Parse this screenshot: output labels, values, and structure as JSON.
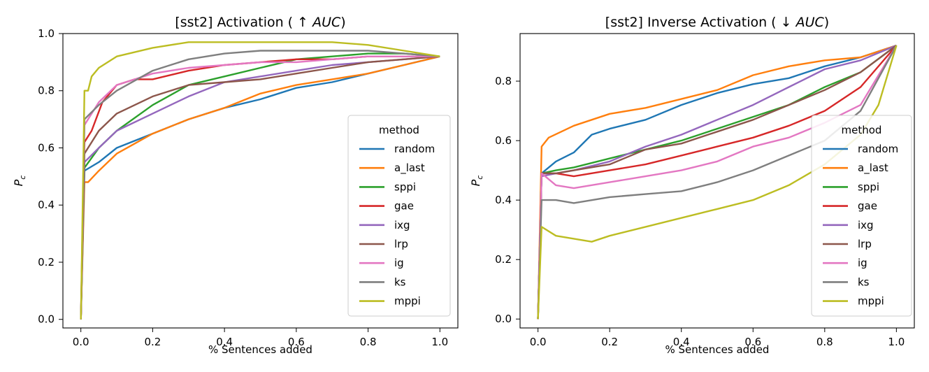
{
  "chart_data": [
    {
      "type": "line",
      "title_prefix": "[sst2] Activation ( ↑ ",
      "title_italic": "AUC",
      "title_suffix": ")",
      "xlabel": "% Sentences added",
      "ylabel_main": "P",
      "ylabel_sub": "c",
      "xlim": [
        -0.05,
        1.05
      ],
      "ylim": [
        -0.03,
        1.0
      ],
      "xticks": [
        "0.0",
        "0.2",
        "0.4",
        "0.6",
        "0.8",
        "1.0"
      ],
      "yticks": [
        "0.0",
        "0.2",
        "0.4",
        "0.6",
        "0.8",
        "1.0"
      ],
      "legend": {
        "title": "method",
        "position": "lower-right"
      },
      "series": [
        {
          "name": "random",
          "color": "#1f77b4",
          "points": [
            [
              0,
              0
            ],
            [
              0.01,
              0.52
            ],
            [
              0.05,
              0.55
            ],
            [
              0.1,
              0.6
            ],
            [
              0.2,
              0.65
            ],
            [
              0.3,
              0.7
            ],
            [
              0.4,
              0.74
            ],
            [
              0.5,
              0.77
            ],
            [
              0.6,
              0.81
            ],
            [
              0.7,
              0.83
            ],
            [
              0.8,
              0.86
            ],
            [
              0.9,
              0.89
            ],
            [
              1.0,
              0.92
            ]
          ]
        },
        {
          "name": "a_last",
          "color": "#ff7f0e",
          "points": [
            [
              0,
              0
            ],
            [
              0.01,
              0.48
            ],
            [
              0.02,
              0.48
            ],
            [
              0.05,
              0.52
            ],
            [
              0.1,
              0.58
            ],
            [
              0.2,
              0.65
            ],
            [
              0.3,
              0.7
            ],
            [
              0.4,
              0.74
            ],
            [
              0.5,
              0.79
            ],
            [
              0.6,
              0.82
            ],
            [
              0.7,
              0.84
            ],
            [
              0.8,
              0.86
            ],
            [
              0.9,
              0.89
            ],
            [
              1.0,
              0.92
            ]
          ]
        },
        {
          "name": "sppi",
          "color": "#2ca02c",
          "points": [
            [
              0,
              0
            ],
            [
              0.01,
              0.53
            ],
            [
              0.05,
              0.6
            ],
            [
              0.1,
              0.66
            ],
            [
              0.2,
              0.75
            ],
            [
              0.3,
              0.82
            ],
            [
              0.4,
              0.85
            ],
            [
              0.5,
              0.88
            ],
            [
              0.6,
              0.91
            ],
            [
              0.7,
              0.92
            ],
            [
              0.8,
              0.93
            ],
            [
              0.9,
              0.93
            ],
            [
              1.0,
              0.92
            ]
          ]
        },
        {
          "name": "gae",
          "color": "#d62728",
          "points": [
            [
              0,
              0
            ],
            [
              0.01,
              0.62
            ],
            [
              0.03,
              0.66
            ],
            [
              0.06,
              0.76
            ],
            [
              0.1,
              0.82
            ],
            [
              0.15,
              0.84
            ],
            [
              0.2,
              0.84
            ],
            [
              0.3,
              0.87
            ],
            [
              0.4,
              0.89
            ],
            [
              0.5,
              0.9
            ],
            [
              0.6,
              0.91
            ],
            [
              0.7,
              0.91
            ],
            [
              0.8,
              0.92
            ],
            [
              0.9,
              0.92
            ],
            [
              1.0,
              0.92
            ]
          ]
        },
        {
          "name": "ixg",
          "color": "#9467bd",
          "points": [
            [
              0,
              0
            ],
            [
              0.01,
              0.55
            ],
            [
              0.05,
              0.6
            ],
            [
              0.1,
              0.66
            ],
            [
              0.2,
              0.72
            ],
            [
              0.3,
              0.78
            ],
            [
              0.4,
              0.83
            ],
            [
              0.5,
              0.85
            ],
            [
              0.6,
              0.87
            ],
            [
              0.7,
              0.89
            ],
            [
              0.8,
              0.9
            ],
            [
              0.9,
              0.91
            ],
            [
              1.0,
              0.92
            ]
          ]
        },
        {
          "name": "lrp",
          "color": "#8c564b",
          "points": [
            [
              0,
              0
            ],
            [
              0.01,
              0.58
            ],
            [
              0.05,
              0.66
            ],
            [
              0.1,
              0.72
            ],
            [
              0.2,
              0.78
            ],
            [
              0.3,
              0.82
            ],
            [
              0.4,
              0.83
            ],
            [
              0.5,
              0.84
            ],
            [
              0.6,
              0.86
            ],
            [
              0.7,
              0.88
            ],
            [
              0.8,
              0.9
            ],
            [
              0.9,
              0.91
            ],
            [
              1.0,
              0.92
            ]
          ]
        },
        {
          "name": "ig",
          "color": "#e377c2",
          "points": [
            [
              0,
              0
            ],
            [
              0.01,
              0.68
            ],
            [
              0.05,
              0.76
            ],
            [
              0.1,
              0.82
            ],
            [
              0.2,
              0.86
            ],
            [
              0.3,
              0.88
            ],
            [
              0.4,
              0.89
            ],
            [
              0.5,
              0.9
            ],
            [
              0.6,
              0.9
            ],
            [
              0.7,
              0.91
            ],
            [
              0.8,
              0.92
            ],
            [
              0.9,
              0.92
            ],
            [
              1.0,
              0.92
            ]
          ]
        },
        {
          "name": "ks",
          "color": "#7f7f7f",
          "points": [
            [
              0,
              0
            ],
            [
              0.01,
              0.7
            ],
            [
              0.05,
              0.75
            ],
            [
              0.1,
              0.8
            ],
            [
              0.2,
              0.87
            ],
            [
              0.3,
              0.91
            ],
            [
              0.4,
              0.93
            ],
            [
              0.5,
              0.94
            ],
            [
              0.6,
              0.94
            ],
            [
              0.7,
              0.94
            ],
            [
              0.8,
              0.94
            ],
            [
              0.9,
              0.93
            ],
            [
              1.0,
              0.92
            ]
          ]
        },
        {
          "name": "mppi",
          "color": "#bcbd22",
          "points": [
            [
              0,
              0
            ],
            [
              0.01,
              0.8
            ],
            [
              0.02,
              0.8
            ],
            [
              0.03,
              0.85
            ],
            [
              0.05,
              0.88
            ],
            [
              0.1,
              0.92
            ],
            [
              0.2,
              0.95
            ],
            [
              0.3,
              0.97
            ],
            [
              0.4,
              0.97
            ],
            [
              0.5,
              0.97
            ],
            [
              0.6,
              0.97
            ],
            [
              0.7,
              0.97
            ],
            [
              0.8,
              0.96
            ],
            [
              0.9,
              0.94
            ],
            [
              1.0,
              0.92
            ]
          ]
        }
      ]
    },
    {
      "type": "line",
      "title_prefix": "[sst2] Inverse Activation ( ↓ ",
      "title_italic": "AUC",
      "title_suffix": ")",
      "xlabel": "% Sentences added",
      "ylabel_main": "P",
      "ylabel_sub": "c",
      "xlim": [
        -0.05,
        1.05
      ],
      "ylim": [
        -0.03,
        0.96
      ],
      "xticks": [
        "0.0",
        "0.2",
        "0.4",
        "0.6",
        "0.8",
        "1.0"
      ],
      "yticks": [
        "0.0",
        "0.2",
        "0.4",
        "0.6",
        "0.8"
      ],
      "legend": {
        "title": "method",
        "position": "lower-right"
      },
      "series": [
        {
          "name": "random",
          "color": "#1f77b4",
          "points": [
            [
              0,
              0
            ],
            [
              0.01,
              0.49
            ],
            [
              0.05,
              0.53
            ],
            [
              0.1,
              0.56
            ],
            [
              0.15,
              0.62
            ],
            [
              0.2,
              0.64
            ],
            [
              0.3,
              0.67
            ],
            [
              0.4,
              0.72
            ],
            [
              0.5,
              0.76
            ],
            [
              0.6,
              0.79
            ],
            [
              0.7,
              0.81
            ],
            [
              0.8,
              0.85
            ],
            [
              0.9,
              0.88
            ],
            [
              1.0,
              0.92
            ]
          ]
        },
        {
          "name": "a_last",
          "color": "#ff7f0e",
          "points": [
            [
              0,
              0
            ],
            [
              0.01,
              0.58
            ],
            [
              0.03,
              0.61
            ],
            [
              0.1,
              0.65
            ],
            [
              0.2,
              0.69
            ],
            [
              0.3,
              0.71
            ],
            [
              0.4,
              0.74
            ],
            [
              0.5,
              0.77
            ],
            [
              0.6,
              0.82
            ],
            [
              0.7,
              0.85
            ],
            [
              0.8,
              0.87
            ],
            [
              0.9,
              0.88
            ],
            [
              1.0,
              0.92
            ]
          ]
        },
        {
          "name": "sppi",
          "color": "#2ca02c",
          "points": [
            [
              0,
              0
            ],
            [
              0.01,
              0.49
            ],
            [
              0.05,
              0.5
            ],
            [
              0.1,
              0.51
            ],
            [
              0.2,
              0.54
            ],
            [
              0.3,
              0.57
            ],
            [
              0.4,
              0.6
            ],
            [
              0.5,
              0.64
            ],
            [
              0.6,
              0.68
            ],
            [
              0.7,
              0.72
            ],
            [
              0.8,
              0.78
            ],
            [
              0.9,
              0.83
            ],
            [
              1.0,
              0.92
            ]
          ]
        },
        {
          "name": "gae",
          "color": "#d62728",
          "points": [
            [
              0,
              0
            ],
            [
              0.01,
              0.49
            ],
            [
              0.05,
              0.49
            ],
            [
              0.1,
              0.48
            ],
            [
              0.2,
              0.5
            ],
            [
              0.3,
              0.52
            ],
            [
              0.4,
              0.55
            ],
            [
              0.5,
              0.58
            ],
            [
              0.6,
              0.61
            ],
            [
              0.7,
              0.65
            ],
            [
              0.8,
              0.7
            ],
            [
              0.9,
              0.78
            ],
            [
              1.0,
              0.92
            ]
          ]
        },
        {
          "name": "ixg",
          "color": "#9467bd",
          "points": [
            [
              0,
              0
            ],
            [
              0.01,
              0.48
            ],
            [
              0.05,
              0.49
            ],
            [
              0.1,
              0.5
            ],
            [
              0.2,
              0.53
            ],
            [
              0.3,
              0.58
            ],
            [
              0.4,
              0.62
            ],
            [
              0.5,
              0.67
            ],
            [
              0.6,
              0.72
            ],
            [
              0.7,
              0.78
            ],
            [
              0.8,
              0.84
            ],
            [
              0.9,
              0.87
            ],
            [
              1.0,
              0.92
            ]
          ]
        },
        {
          "name": "lrp",
          "color": "#8c564b",
          "points": [
            [
              0,
              0
            ],
            [
              0.01,
              0.49
            ],
            [
              0.05,
              0.49
            ],
            [
              0.1,
              0.5
            ],
            [
              0.2,
              0.52
            ],
            [
              0.3,
              0.57
            ],
            [
              0.4,
              0.59
            ],
            [
              0.5,
              0.63
            ],
            [
              0.6,
              0.67
            ],
            [
              0.7,
              0.72
            ],
            [
              0.8,
              0.77
            ],
            [
              0.9,
              0.83
            ],
            [
              1.0,
              0.92
            ]
          ]
        },
        {
          "name": "ig",
          "color": "#e377c2",
          "points": [
            [
              0,
              0
            ],
            [
              0.01,
              0.49
            ],
            [
              0.05,
              0.45
            ],
            [
              0.1,
              0.44
            ],
            [
              0.2,
              0.46
            ],
            [
              0.3,
              0.48
            ],
            [
              0.4,
              0.5
            ],
            [
              0.5,
              0.53
            ],
            [
              0.6,
              0.58
            ],
            [
              0.7,
              0.61
            ],
            [
              0.8,
              0.66
            ],
            [
              0.9,
              0.72
            ],
            [
              1.0,
              0.92
            ]
          ]
        },
        {
          "name": "ks",
          "color": "#7f7f7f",
          "points": [
            [
              0,
              0
            ],
            [
              0.01,
              0.4
            ],
            [
              0.05,
              0.4
            ],
            [
              0.1,
              0.39
            ],
            [
              0.2,
              0.41
            ],
            [
              0.3,
              0.42
            ],
            [
              0.4,
              0.43
            ],
            [
              0.5,
              0.46
            ],
            [
              0.6,
              0.5
            ],
            [
              0.7,
              0.55
            ],
            [
              0.8,
              0.6
            ],
            [
              0.9,
              0.7
            ],
            [
              1.0,
              0.92
            ]
          ]
        },
        {
          "name": "mppi",
          "color": "#bcbd22",
          "points": [
            [
              0,
              0
            ],
            [
              0.01,
              0.31
            ],
            [
              0.05,
              0.28
            ],
            [
              0.1,
              0.27
            ],
            [
              0.15,
              0.26
            ],
            [
              0.2,
              0.28
            ],
            [
              0.3,
              0.31
            ],
            [
              0.4,
              0.34
            ],
            [
              0.5,
              0.37
            ],
            [
              0.6,
              0.4
            ],
            [
              0.7,
              0.45
            ],
            [
              0.8,
              0.52
            ],
            [
              0.9,
              0.62
            ],
            [
              0.95,
              0.72
            ],
            [
              1.0,
              0.92
            ]
          ]
        }
      ]
    }
  ]
}
